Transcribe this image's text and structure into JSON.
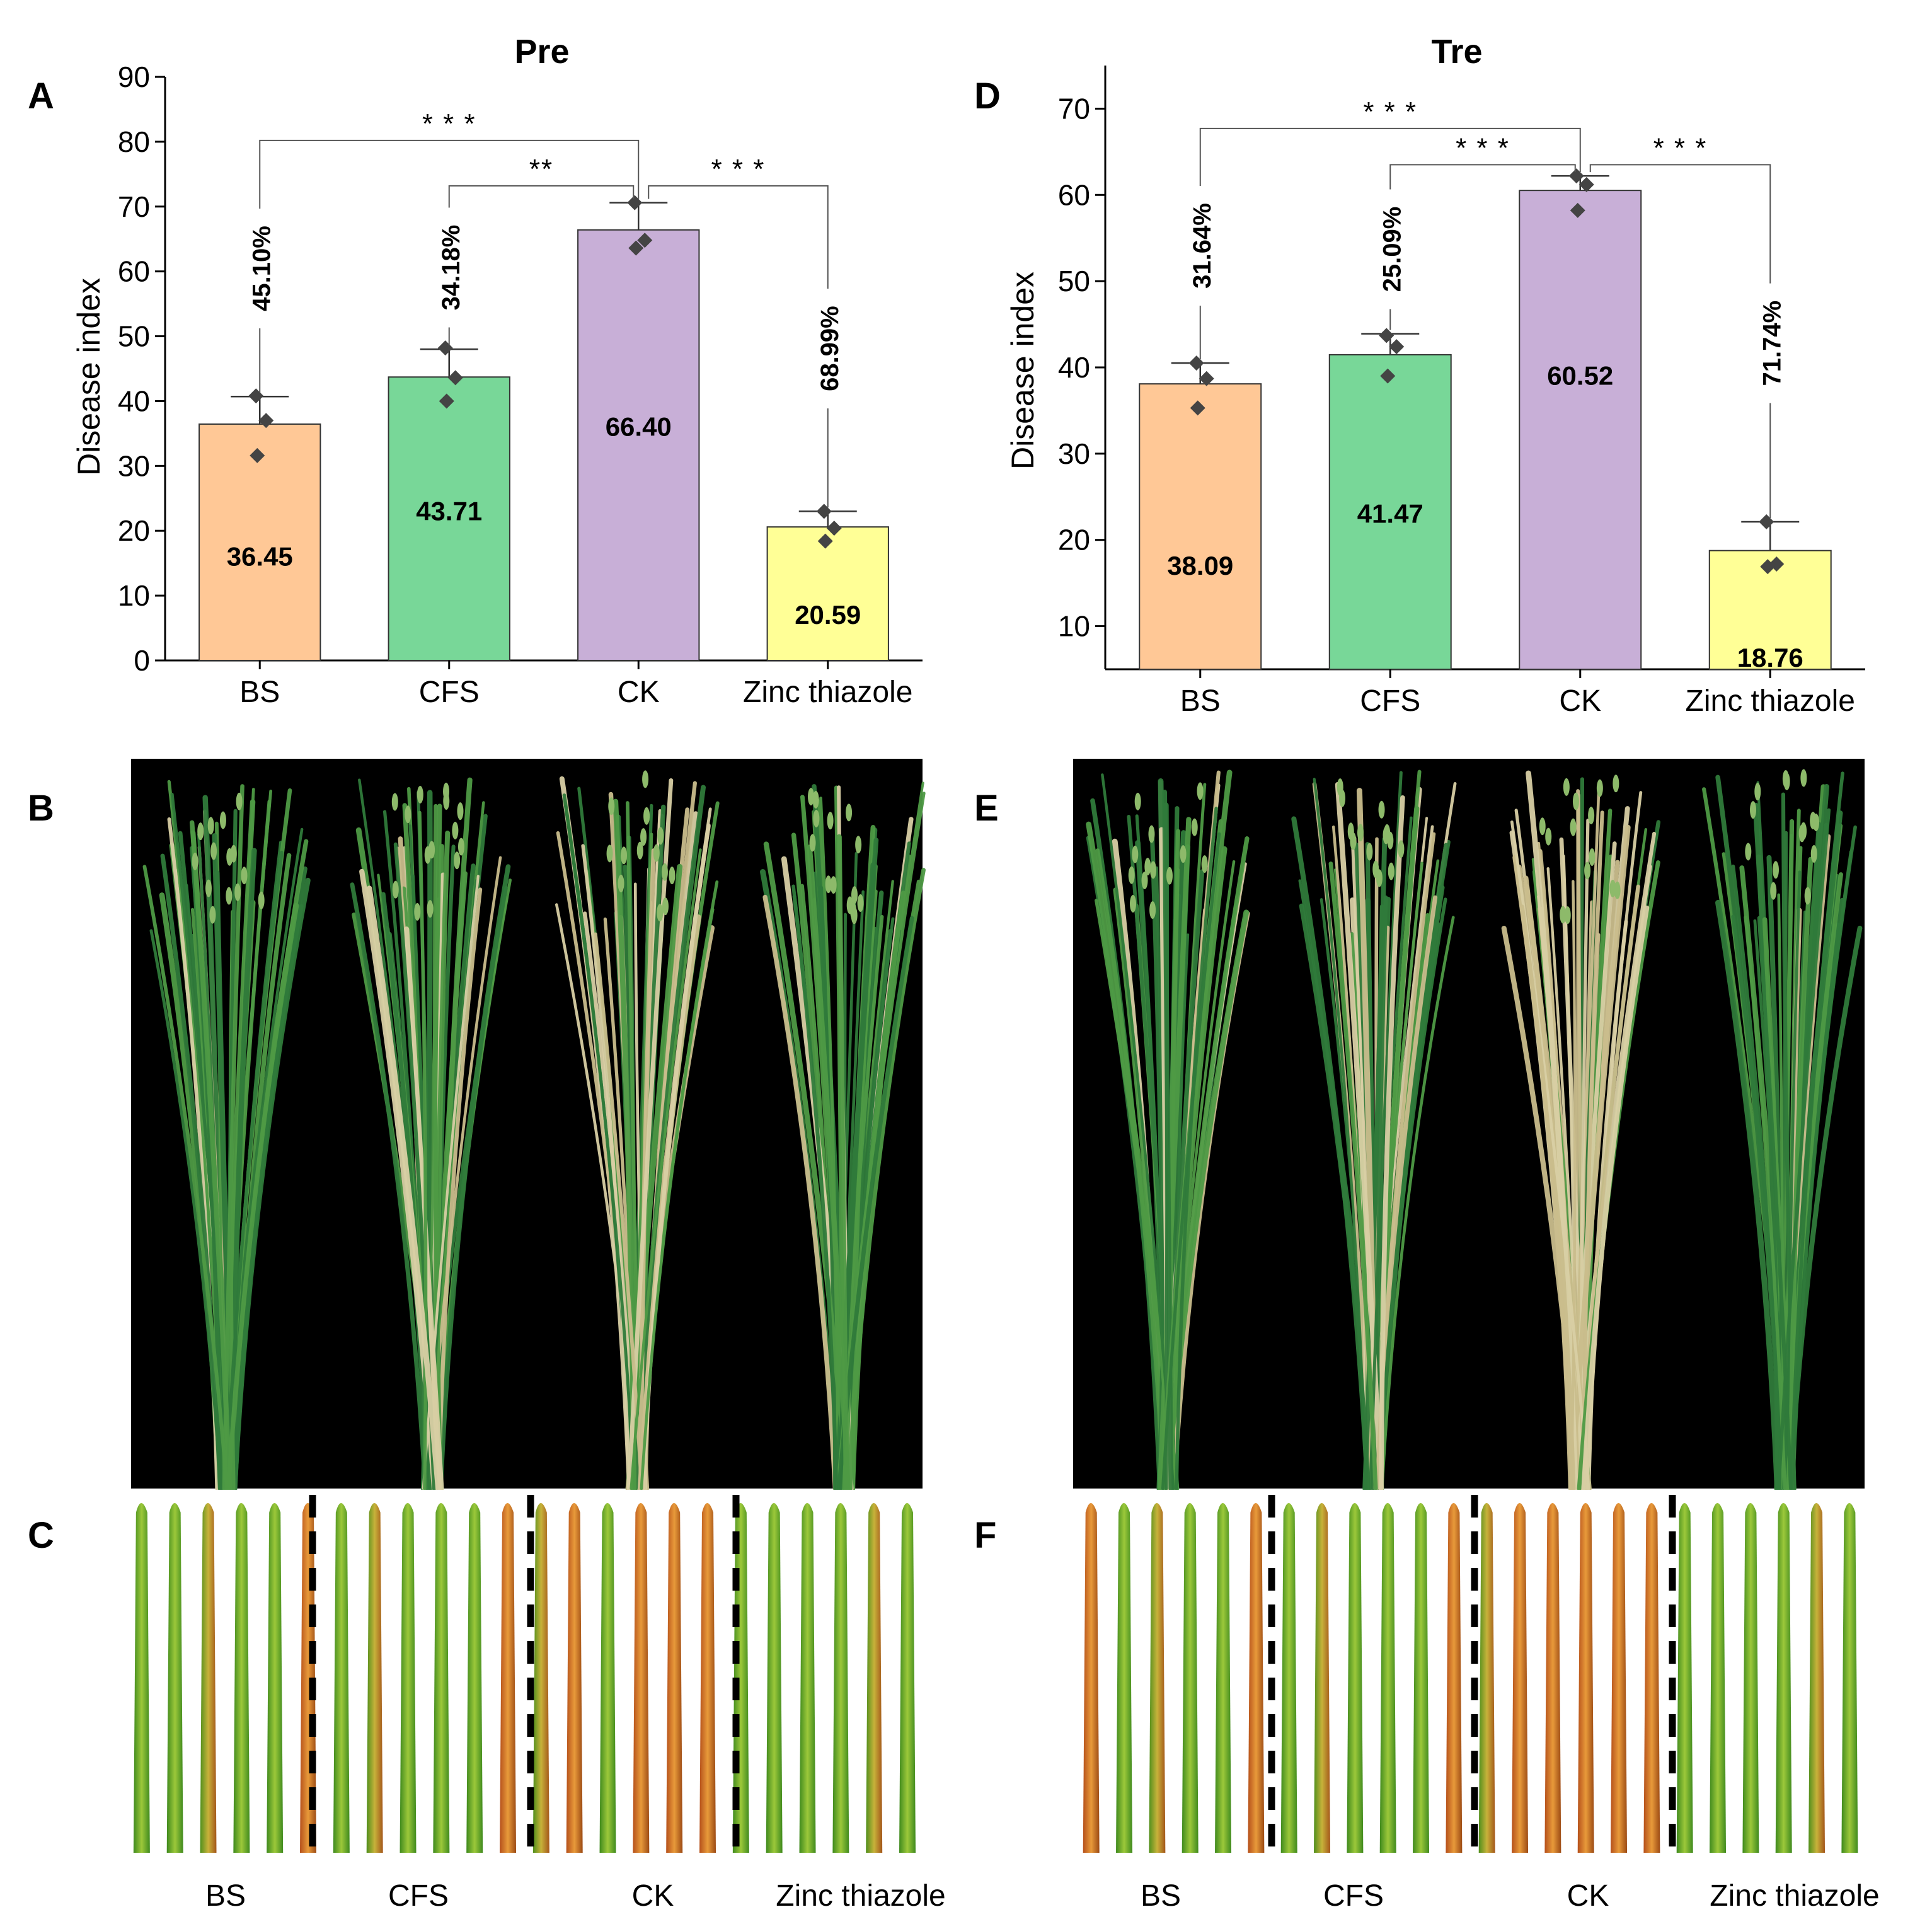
{
  "panels": {
    "A": "A",
    "B": "B",
    "C": "C",
    "D": "D",
    "E": "E",
    "F": "F"
  },
  "chart_data": [
    {
      "panel": "A",
      "type": "bar",
      "title": "Pre",
      "ylabel": "Disease index",
      "xlabel": "",
      "ylim": [
        0,
        90
      ],
      "yticks": [
        0,
        10,
        20,
        30,
        40,
        50,
        60,
        70,
        80,
        90
      ],
      "categories": [
        "BS",
        "CFS",
        "CK",
        "Zinc thiazole"
      ],
      "values": [
        36.45,
        43.71,
        66.4,
        20.59
      ],
      "value_labels": [
        "36.45",
        "43.71",
        "66.40",
        "20.59"
      ],
      "value_label_y": [
        16,
        23,
        36,
        7
      ],
      "error_upper": [
        40.7,
        48.0,
        70.6,
        23.0
      ],
      "points": [
        [
          40.8,
          37.0,
          31.6
        ],
        [
          48.2,
          43.6,
          40.0
        ],
        [
          70.6,
          64.8,
          63.6
        ],
        [
          23.0,
          20.4,
          18.4
        ]
      ],
      "colors": [
        "#FFC896",
        "#78D798",
        "#C8AFD7",
        "#FFFF96"
      ],
      "reduction_labels": [
        "45.10%",
        "34.18%",
        "",
        "68.99%"
      ],
      "comparisons": [
        {
          "from": "BS",
          "to": "CK",
          "label": "* * *",
          "y": 80.2
        },
        {
          "from": "CFS",
          "to": "CK",
          "label": "**",
          "y": 73.2
        },
        {
          "from": "CK",
          "to": "Zinc thiazole",
          "label": "* * *",
          "y": 73.2
        }
      ]
    },
    {
      "panel": "D",
      "type": "bar",
      "title": "Tre",
      "ylabel": "Disease index",
      "xlabel": "",
      "ylim": [
        5,
        75
      ],
      "yticks": [
        10,
        20,
        30,
        40,
        50,
        60,
        70
      ],
      "categories": [
        "BS",
        "CFS",
        "CK",
        "Zinc thiazole"
      ],
      "values": [
        38.09,
        41.47,
        60.52,
        18.76
      ],
      "value_labels": [
        "38.09",
        "41.47",
        "60.52",
        "18.76"
      ],
      "value_label_y": [
        17,
        23,
        39,
        6.3
      ],
      "error_upper": [
        40.5,
        43.9,
        62.2,
        22.1
      ],
      "points": [
        [
          40.5,
          38.7,
          35.3
        ],
        [
          43.7,
          42.4,
          39.0
        ],
        [
          62.2,
          61.2,
          58.2
        ],
        [
          22.1,
          17.2,
          16.9
        ]
      ],
      "colors": [
        "#FFC896",
        "#78D798",
        "#C8AFD7",
        "#FFFF96"
      ],
      "reduction_labels": [
        "31.64%",
        "25.09%",
        "",
        "71.74%"
      ],
      "comparisons": [
        {
          "from": "BS",
          "to": "CK",
          "label": "* * *",
          "y": 67.7
        },
        {
          "from": "CFS",
          "to": "CK",
          "label": "* * *",
          "y": 63.5
        },
        {
          "from": "CK",
          "to": "Zinc thiazole",
          "label": "* * *",
          "y": 63.5
        }
      ]
    }
  ],
  "photos": {
    "B_labels": [],
    "C_labels": [
      "BS",
      "CFS",
      "CK",
      "Zinc thiazole"
    ],
    "E_labels": [],
    "F_labels": [
      "BS",
      "CFS",
      "CK",
      "Zinc thiazole"
    ]
  }
}
